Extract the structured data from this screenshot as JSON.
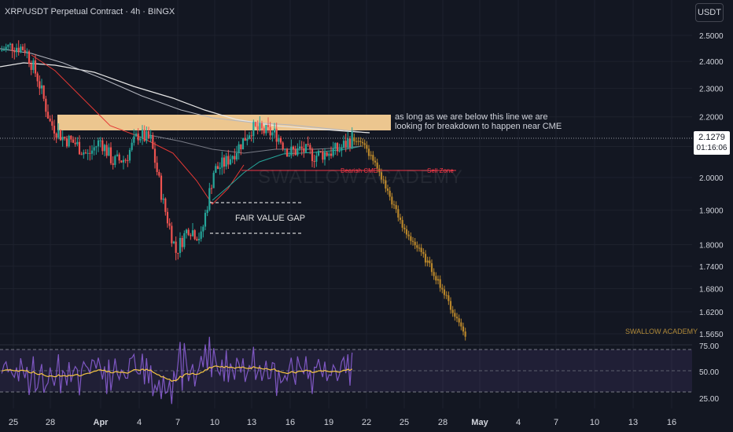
{
  "header": {
    "title": "XRP/USDT Perpetual Contract · 4h · BINGX",
    "currency_button": "USDT"
  },
  "last_price": {
    "price": "2.1279",
    "countdown": "01:16:06"
  },
  "annotations": {
    "resistance_note_line1": "as long as we are below this line we are",
    "resistance_note_line2": "looking for breakdown to happen near CME",
    "fair_value_gap": "FAIR VALUE GAP",
    "bearish_cme": "Bearish CME",
    "sell_zone": "Sell Zone",
    "watermark": "SWALLOW ACADEMY",
    "brand": "SWALLOW ACADEMY"
  },
  "colors": {
    "background": "#131722",
    "up": "#26a69a",
    "down": "#ef5350",
    "projection": "#b8862b",
    "resistance_zone": "#ffd699",
    "rsi_line": "#7e57c2",
    "rsi_ma": "#f5c542",
    "cme_line": "#f23645"
  },
  "chart_data": {
    "type": "candlestick",
    "symbol": "XRP/USDT Perpetual Contract",
    "timeframe": "4h",
    "exchange": "BINGX",
    "price_axis": {
      "scale": "log",
      "ticks": [
        "2.5000",
        "2.4000",
        "2.3000",
        "2.2000",
        "2.1000",
        "2.0000",
        "1.9000",
        "1.8000",
        "1.7400",
        "1.6800",
        "1.6200",
        "1.5650"
      ]
    },
    "time_axis": {
      "ticks": [
        "25",
        "28",
        "Apr",
        "4",
        "7",
        "10",
        "13",
        "16",
        "19",
        "22",
        "25",
        "28",
        "May",
        "4",
        "7",
        "10",
        "13",
        "16"
      ]
    },
    "approx_close_path": [
      {
        "date": "Mar 24",
        "close": 2.44
      },
      {
        "date": "Mar 25",
        "close": 2.46
      },
      {
        "date": "Mar 26",
        "close": 2.45
      },
      {
        "date": "Mar 27",
        "close": 2.34
      },
      {
        "date": "Mar 28",
        "close": 2.18
      },
      {
        "date": "Mar 29",
        "close": 2.13
      },
      {
        "date": "Mar 30",
        "close": 2.11
      },
      {
        "date": "Mar 31",
        "close": 2.07
      },
      {
        "date": "Apr 1",
        "close": 2.12
      },
      {
        "date": "Apr 2",
        "close": 2.05
      },
      {
        "date": "Apr 3",
        "close": 2.06
      },
      {
        "date": "Apr 4",
        "close": 2.14
      },
      {
        "date": "Apr 5",
        "close": 2.12
      },
      {
        "date": "Apr 6",
        "close": 1.92
      },
      {
        "date": "Apr 7",
        "close": 1.78
      },
      {
        "date": "Apr 8",
        "close": 1.85
      },
      {
        "date": "Apr 9",
        "close": 1.82
      },
      {
        "date": "Apr 10",
        "close": 2.02
      },
      {
        "date": "Apr 11",
        "close": 2.05
      },
      {
        "date": "Apr 12",
        "close": 2.1
      },
      {
        "date": "Apr 13",
        "close": 2.16
      },
      {
        "date": "Apr 14",
        "close": 2.15
      },
      {
        "date": "Apr 15",
        "close": 2.14
      },
      {
        "date": "Apr 16",
        "close": 2.08
      },
      {
        "date": "Apr 17",
        "close": 2.09
      },
      {
        "date": "Apr 18",
        "close": 2.07
      },
      {
        "date": "Apr 19",
        "close": 2.08
      },
      {
        "date": "Apr 20",
        "close": 2.09
      },
      {
        "date": "Apr 21",
        "close": 2.13
      }
    ],
    "projection": {
      "description": "projected bearish path",
      "approx_path": [
        {
          "date": "Apr 21",
          "price": 2.13
        },
        {
          "date": "Apr 22",
          "price": 2.1
        },
        {
          "date": "Apr 23",
          "price": 2.03
        },
        {
          "date": "Apr 24",
          "price": 1.94
        },
        {
          "date": "Apr 25",
          "price": 1.85
        },
        {
          "date": "Apr 26",
          "price": 1.8
        },
        {
          "date": "Apr 27",
          "price": 1.75
        },
        {
          "date": "Apr 28",
          "price": 1.69
        },
        {
          "date": "Apr 29",
          "price": 1.62
        },
        {
          "date": "Apr 30",
          "price": 1.565
        }
      ]
    },
    "resistance_zone": {
      "low": 2.155,
      "high": 2.205
    },
    "bearish_cme_level": 2.035,
    "fair_value_gap": {
      "low": 1.84,
      "high": 1.93
    },
    "rsi": {
      "ticks": [
        "75.00",
        "50.00",
        "25.00"
      ],
      "levels": [
        70,
        50,
        30
      ]
    }
  }
}
